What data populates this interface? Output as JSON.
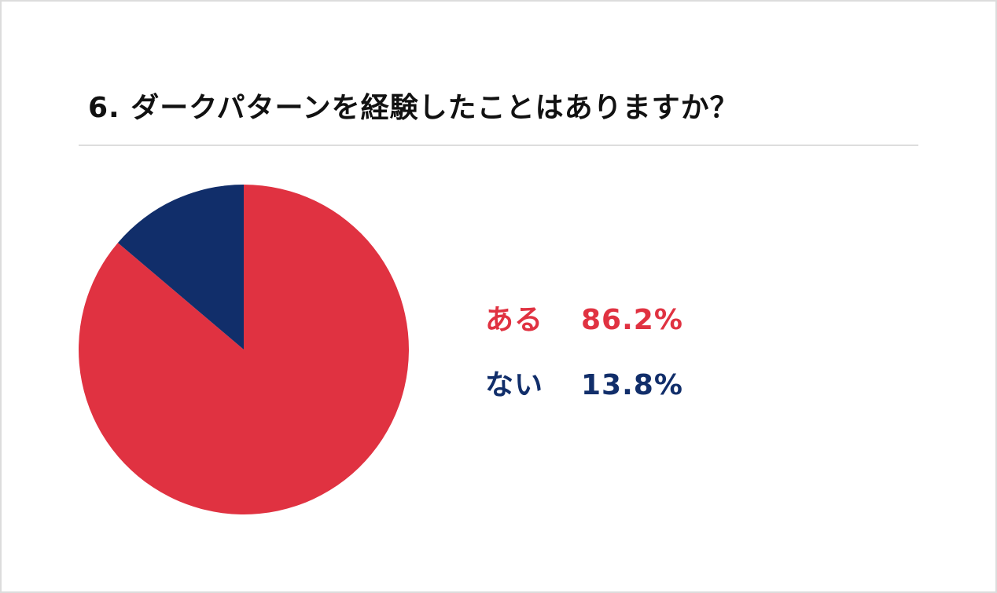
{
  "chart_data": {
    "type": "pie",
    "title": "6. ダークパターンを経験したことはありますか？",
    "categories": [
      "ある",
      "ない"
    ],
    "values": [
      86.2,
      13.8
    ],
    "value_labels": [
      "86.2%",
      "13.8%"
    ],
    "colors": [
      "#e03241",
      "#112e6a"
    ],
    "legend_position": "right"
  }
}
